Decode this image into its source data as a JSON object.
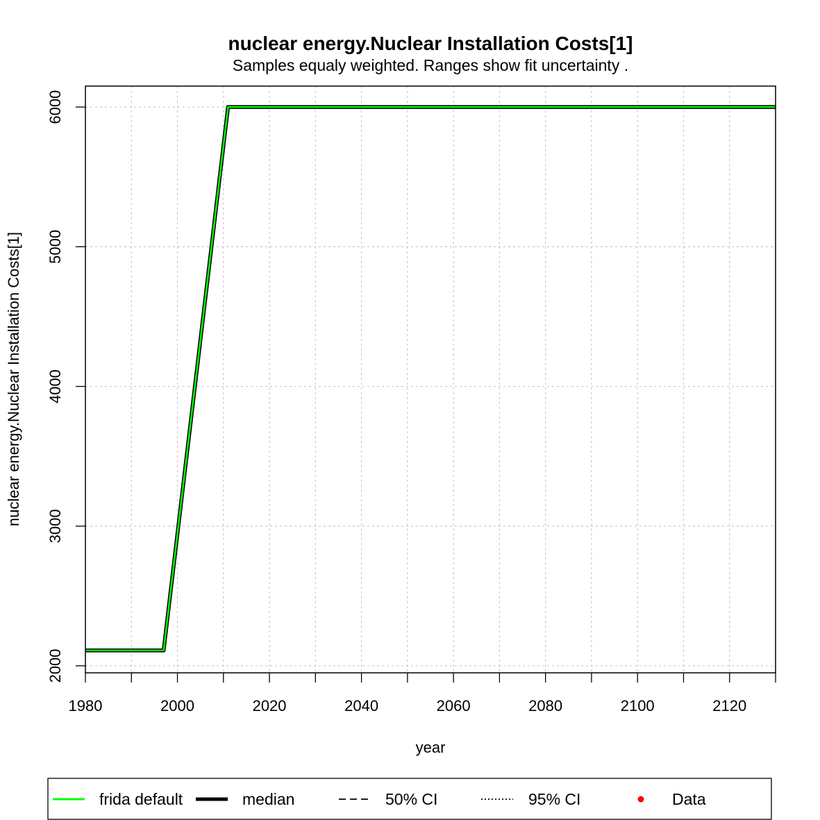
{
  "chart_data": {
    "type": "line",
    "title": "nuclear energy.Nuclear Installation Costs[1]",
    "subtitle": "Samples equaly weighted. Ranges show  fit uncertainty .",
    "xlabel": "year",
    "ylabel": "nuclear energy.Nuclear Installation Costs[1]",
    "xlim": [
      1980,
      2130
    ],
    "ylim": [
      1950,
      6150
    ],
    "x_ticks": [
      "1980",
      "2000",
      "2020",
      "2040",
      "2060",
      "2080",
      "2100",
      "2120"
    ],
    "x_minor_ticks": [
      1990,
      2010,
      2030,
      2050,
      2070,
      2090,
      2110,
      2130
    ],
    "y_ticks": [
      "2000",
      "3000",
      "4000",
      "5000",
      "6000"
    ],
    "grid": true,
    "legend_position": "bottom",
    "series": [
      {
        "name": "frida default",
        "color": "#00ff00",
        "style": "solid",
        "x": [
          1980,
          1997,
          2011,
          2130
        ],
        "y": [
          2110,
          2110,
          6000,
          6000
        ]
      },
      {
        "name": "median",
        "color": "#000000",
        "style": "solid-thick",
        "x": [
          1980,
          1997,
          2011,
          2130
        ],
        "y": [
          2110,
          2110,
          6000,
          6000
        ]
      }
    ],
    "legend": [
      {
        "label": "frida default",
        "kind": "line",
        "color": "#00ff00"
      },
      {
        "label": "median",
        "kind": "thick-line",
        "color": "#000000"
      },
      {
        "label": "50% CI",
        "kind": "dashed",
        "color": "#000000"
      },
      {
        "label": "95% CI",
        "kind": "dotted",
        "color": "#000000"
      },
      {
        "label": "Data",
        "kind": "point",
        "color": "#ff0000"
      }
    ]
  }
}
